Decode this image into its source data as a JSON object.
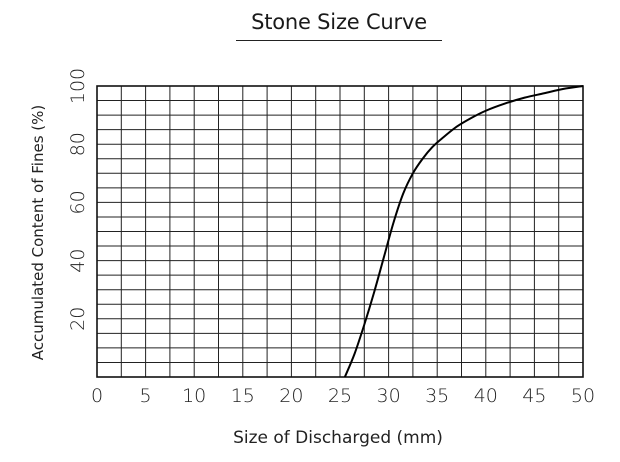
{
  "chart_data": {
    "type": "line",
    "title": "Stone Size Curve",
    "xlabel": "Size of Discharged (mm)",
    "ylabel": "Accumulated Content of Fines (%)",
    "xlim": [
      0,
      50
    ],
    "ylim": [
      0,
      100
    ],
    "x_ticks": [
      "0",
      "5",
      "10",
      "15",
      "20",
      "25",
      "30",
      "35",
      "40",
      "45",
      "50"
    ],
    "y_ticks": [
      "20",
      "40",
      "60",
      "80",
      "100"
    ],
    "grid": true,
    "x_grid_step": 2.5,
    "y_grid_step": 5,
    "series": [
      {
        "x": [
          25.5,
          26.5,
          27.5,
          28.5,
          29.5,
          30.5,
          31.5,
          32.5,
          33.5,
          34.5,
          35.5,
          37,
          38.5,
          40,
          42,
          44,
          46,
          48,
          50
        ],
        "y": [
          0,
          8,
          18,
          29,
          41,
          53,
          63,
          70,
          75,
          79,
          82,
          86,
          89,
          91.5,
          94,
          96,
          97.5,
          99,
          100
        ],
        "color": "#000000"
      }
    ]
  }
}
